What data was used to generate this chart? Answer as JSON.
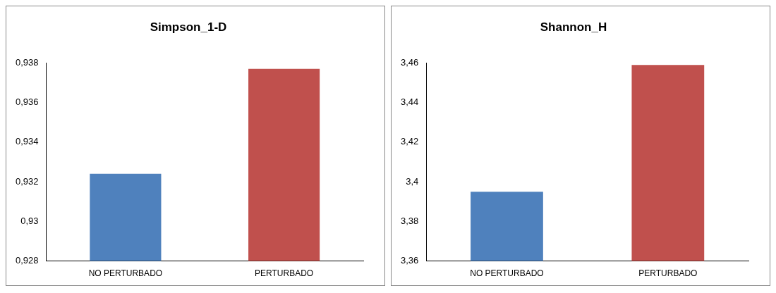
{
  "chart_data": [
    {
      "type": "bar",
      "title": "Simpson_1-D",
      "categories": [
        "NO PERTURBADO",
        "PERTURBADO"
      ],
      "values": [
        0.9324,
        0.9377
      ],
      "colors": [
        "#4f81bd",
        "#c0504d"
      ],
      "ylim": [
        0.928,
        0.938
      ],
      "yticks": [
        {
          "value": 0.928,
          "label": "0,928"
        },
        {
          "value": 0.93,
          "label": "0,93"
        },
        {
          "value": 0.932,
          "label": "0,932"
        },
        {
          "value": 0.934,
          "label": "0,934"
        },
        {
          "value": 0.936,
          "label": "0,936"
        },
        {
          "value": 0.938,
          "label": "0,938"
        }
      ],
      "grid": false,
      "legend": false
    },
    {
      "type": "bar",
      "title": "Shannon_H",
      "categories": [
        "NO PERTURBADO",
        "PERTURBADO"
      ],
      "values": [
        3.395,
        3.459
      ],
      "colors": [
        "#4f81bd",
        "#c0504d"
      ],
      "ylim": [
        3.36,
        3.46
      ],
      "yticks": [
        {
          "value": 3.36,
          "label": "3,36"
        },
        {
          "value": 3.38,
          "label": "3,38"
        },
        {
          "value": 3.4,
          "label": "3,4"
        },
        {
          "value": 3.42,
          "label": "3,42"
        },
        {
          "value": 3.44,
          "label": "3,44"
        },
        {
          "value": 3.46,
          "label": "3,46"
        }
      ],
      "grid": false,
      "legend": false
    }
  ]
}
